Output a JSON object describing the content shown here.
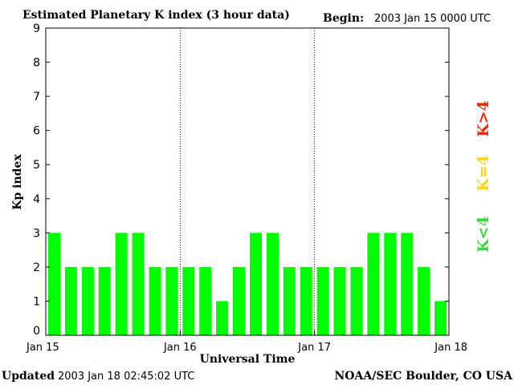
{
  "header": {
    "title": "Estimated Planetary K index (3 hour data)",
    "begin_label": "Begin:",
    "begin_value": "2003 Jan 15 0000 UTC"
  },
  "footer": {
    "updated_label": "Updated",
    "updated_value": "2003 Jan 18 02:45:02 UTC",
    "source": "NOAA/SEC Boulder, CO USA"
  },
  "legend": {
    "high": "K>4",
    "equal": "K=4",
    "low": "K<4"
  },
  "colors": {
    "bar_low": "#00ff00",
    "bar_equal": "#ffd700",
    "bar_high": "#ff2200",
    "frame": "#000000"
  },
  "chart_data": {
    "type": "bar",
    "title": "Estimated Planetary K index (3 hour data)",
    "xlabel": "Universal Time",
    "ylabel": "Kp index",
    "ylim": [
      0,
      9
    ],
    "y_ticks": [
      "0",
      "1",
      "2",
      "3",
      "4",
      "5",
      "6",
      "7",
      "8",
      "9"
    ],
    "x_ticks": [
      "Jan 15",
      "Jan 16",
      "Jan 17",
      "Jan 18"
    ],
    "interval_hours": 3,
    "values": [
      3,
      2,
      2,
      2,
      3,
      3,
      2,
      2,
      2,
      2,
      1,
      2,
      3,
      3,
      2,
      2,
      2,
      2,
      2,
      3,
      3,
      3,
      2,
      1
    ]
  }
}
